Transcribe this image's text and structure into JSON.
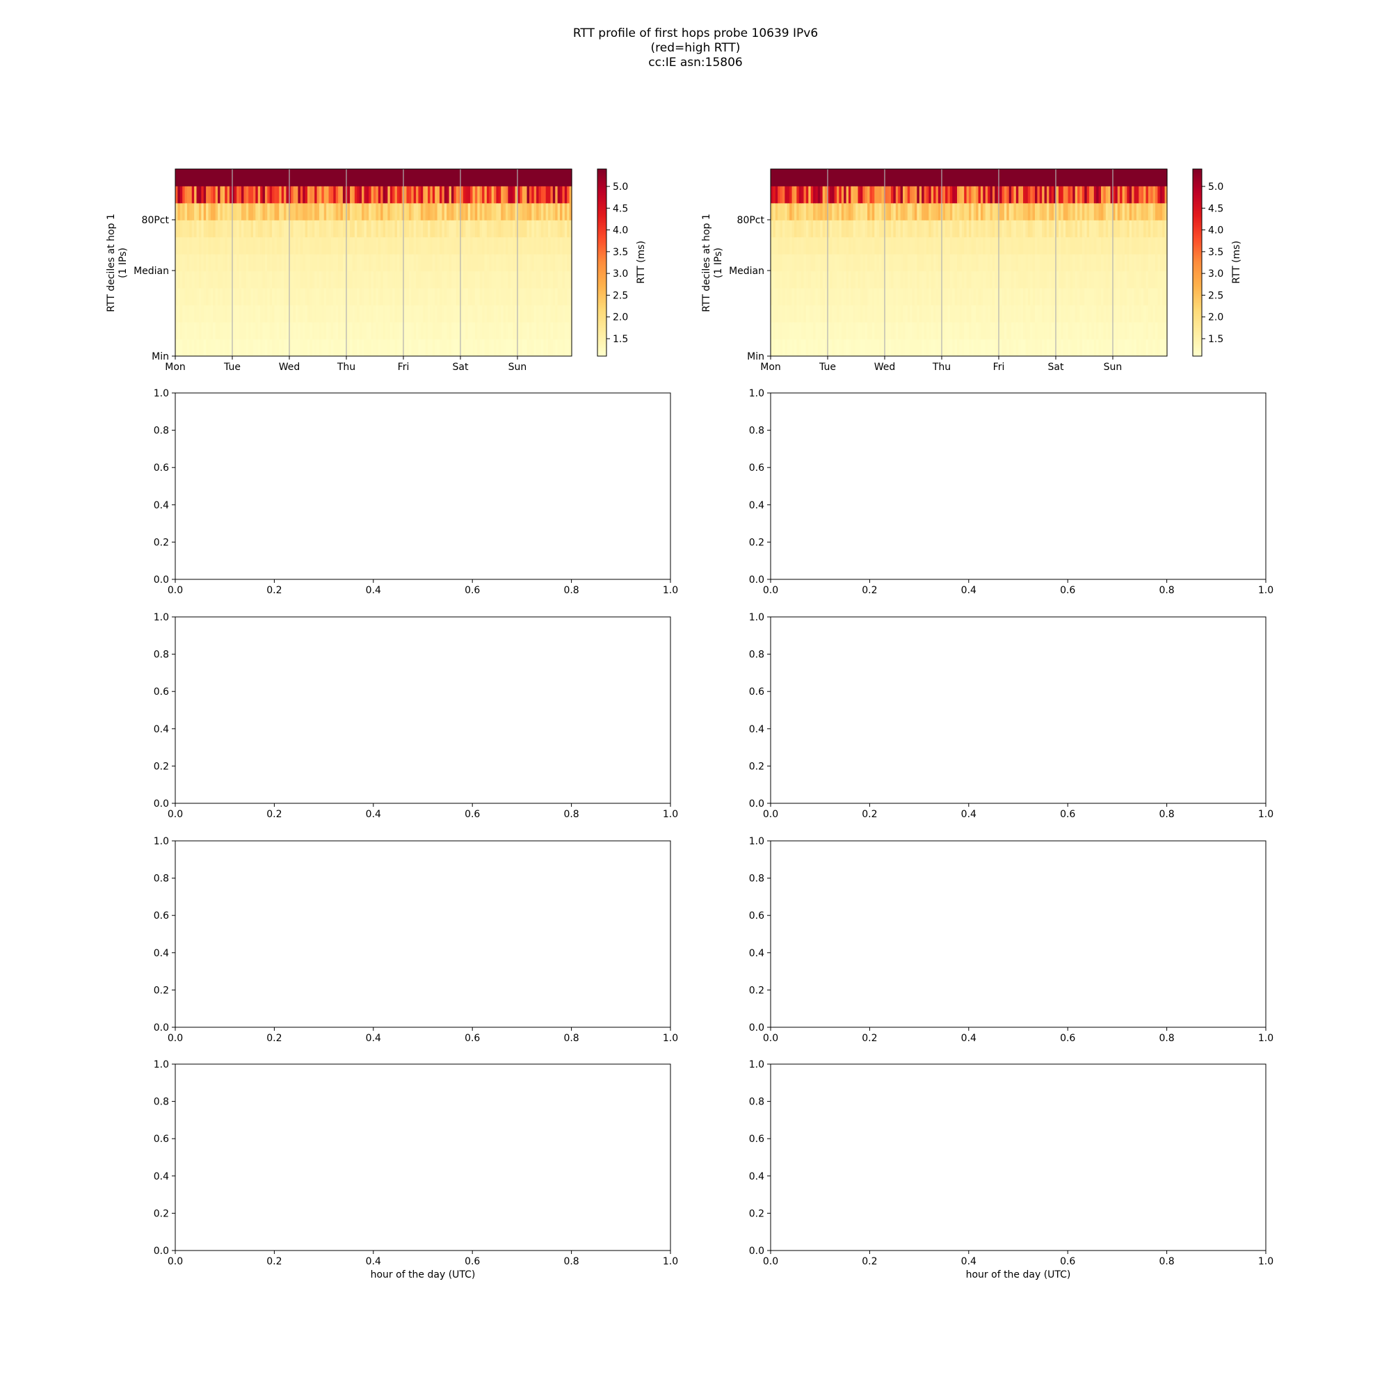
{
  "title_lines": [
    "RTT profile of first hops probe 10639 IPv6",
    "(red=high RTT)",
    "cc:IE asn:15806"
  ],
  "heatmaps": [
    {
      "ylabel": "RTT deciles at hop 1",
      "ylabel2": "(1 IPs)",
      "ytick_labels": [
        "Min",
        "Median",
        "80Pct"
      ],
      "xtick_labels": [
        "Mon",
        "Tue",
        "Wed",
        "Thu",
        "Fri",
        "Sat",
        "Sun"
      ],
      "colorbar_label": "RTT (ms)",
      "colorbar_ticks": [
        "1.5",
        "2.0",
        "2.5",
        "3.0",
        "3.5",
        "4.0",
        "4.5",
        "5.0"
      ]
    },
    {
      "ylabel": "RTT deciles at hop 1",
      "ylabel2": "(1 IPs)",
      "ytick_labels": [
        "Min",
        "Median",
        "80Pct"
      ],
      "xtick_labels": [
        "Mon",
        "Tue",
        "Wed",
        "Thu",
        "Fri",
        "Sat",
        "Sun"
      ],
      "colorbar_label": "RTT (ms)",
      "colorbar_ticks": [
        "1.5",
        "2.0",
        "2.5",
        "3.0",
        "3.5",
        "4.0",
        "4.5",
        "5.0"
      ]
    }
  ],
  "empty_axes": {
    "ticks": [
      "0.0",
      "0.2",
      "0.4",
      "0.6",
      "0.8",
      "1.0"
    ],
    "xlabel": "hour of the day (UTC)"
  },
  "chart_data": [
    {
      "type": "heatmap",
      "x_categories": [
        "Mon",
        "Tue",
        "Wed",
        "Thu",
        "Fri",
        "Sat",
        "Sun"
      ],
      "rows": 11,
      "colorbar_range": [
        1.1,
        5.4
      ],
      "colormap": "YlOrRd",
      "row_values_ms": [
        1.2,
        1.25,
        1.3,
        1.35,
        1.4,
        1.45,
        1.55,
        1.7,
        2.3,
        3.9,
        5.4
      ]
    },
    {
      "type": "heatmap",
      "x_categories": [
        "Mon",
        "Tue",
        "Wed",
        "Thu",
        "Fri",
        "Sat",
        "Sun"
      ],
      "rows": 11,
      "colorbar_range": [
        1.1,
        5.4
      ],
      "colormap": "YlOrRd",
      "row_values_ms": [
        1.2,
        1.25,
        1.3,
        1.35,
        1.4,
        1.45,
        1.55,
        1.7,
        2.3,
        3.9,
        5.4
      ]
    }
  ]
}
